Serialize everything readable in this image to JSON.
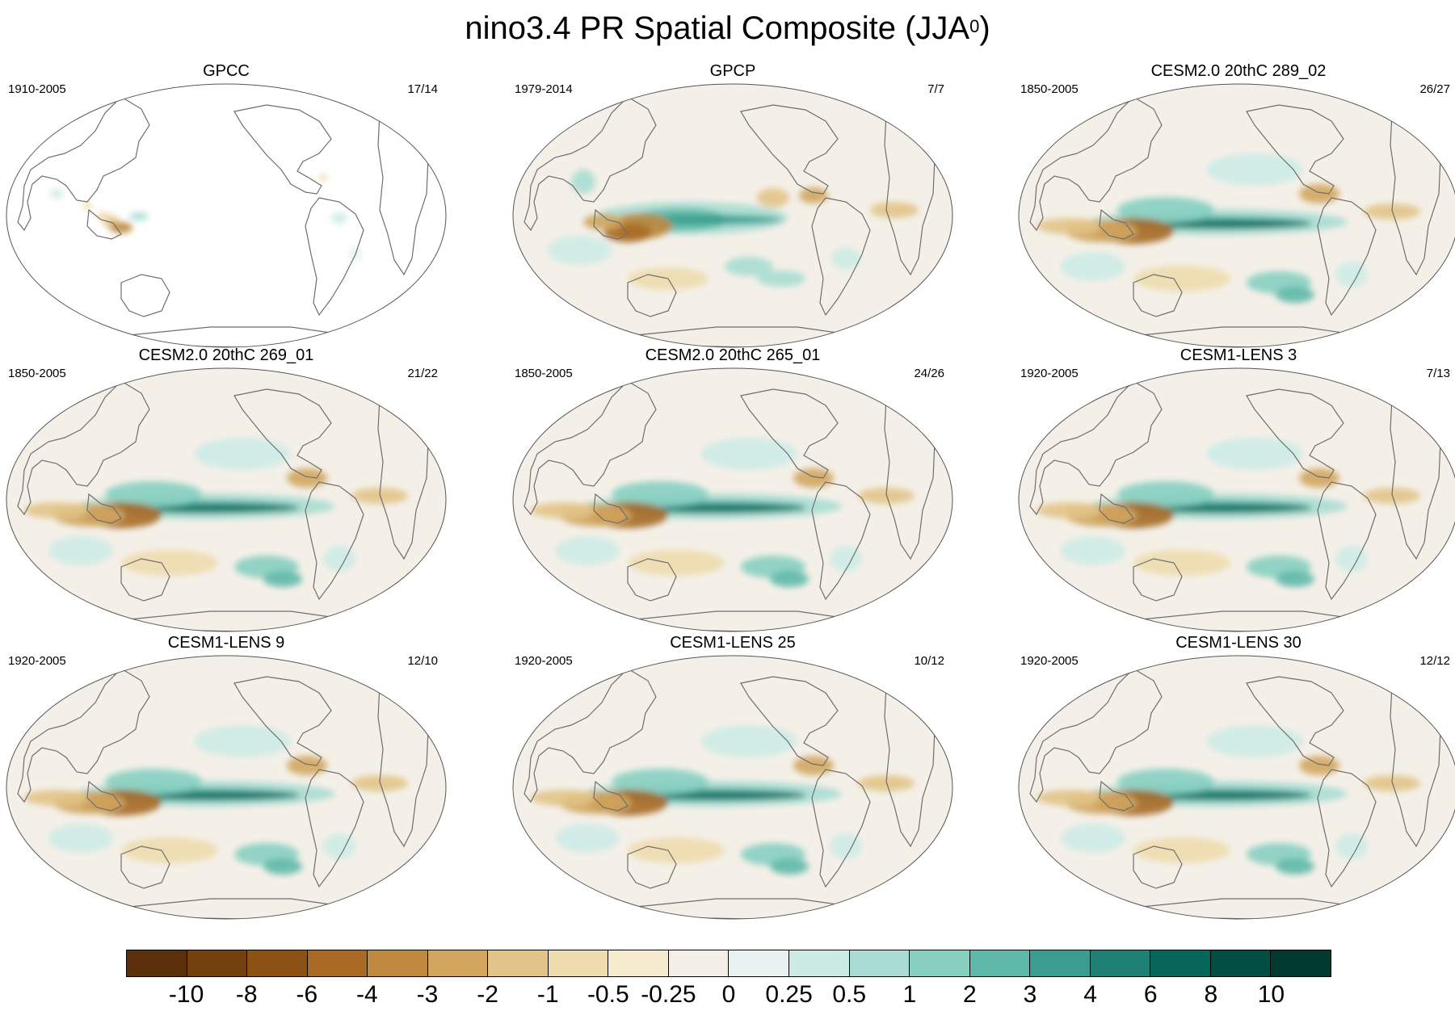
{
  "figure": {
    "title_main": "nino3.4 PR Spatial Composite (JJA",
    "title_sup": "0",
    "title_close": ")"
  },
  "panels": [
    {
      "title": "GPCC",
      "period": "1910-2005",
      "count": "17/14"
    },
    {
      "title": "GPCP",
      "period": "1979-2014",
      "count": "7/7"
    },
    {
      "title": "CESM2.0 20thC 289_02",
      "period": "1850-2005",
      "count": "26/27"
    },
    {
      "title": "CESM2.0 20thC 269_01",
      "period": "1850-2005",
      "count": "21/22"
    },
    {
      "title": "CESM2.0 20thC 265_01",
      "period": "1850-2005",
      "count": "24/26"
    },
    {
      "title": "CESM1-LENS 3",
      "period": "1920-2005",
      "count": "7/13"
    },
    {
      "title": "CESM1-LENS 9",
      "period": "1920-2005",
      "count": "12/10"
    },
    {
      "title": "CESM1-LENS 25",
      "period": "1920-2005",
      "count": "10/12"
    },
    {
      "title": "CESM1-LENS 30",
      "period": "1920-2005",
      "count": "12/12"
    }
  ],
  "colorbar": {
    "labels": [
      "-10",
      "-8",
      "-6",
      "-4",
      "-3",
      "-2",
      "-1",
      "-0.5",
      "-0.25",
      "0",
      "0.25",
      "0.5",
      "1",
      "2",
      "3",
      "4",
      "6",
      "8",
      "10"
    ],
    "colors": [
      "#5a2f0a",
      "#74400d",
      "#8c5213",
      "#a86a25",
      "#bf8a3f",
      "#d2a65f",
      "#e2c488",
      "#eedcae",
      "#f5ebcf",
      "#f4f0e8",
      "#e8f3f1",
      "#cdebe5",
      "#a9ddd3",
      "#87cfc1",
      "#5fb9aa",
      "#3a9d8f",
      "#1f8074",
      "#06665a",
      "#034e43",
      "#003a30"
    ]
  },
  "colors": {
    "ocean_neutral": "#f4f0e8",
    "land_outline": "#6e6e6e",
    "dry": "#bf8a3f",
    "wet": "#1f8074"
  }
}
